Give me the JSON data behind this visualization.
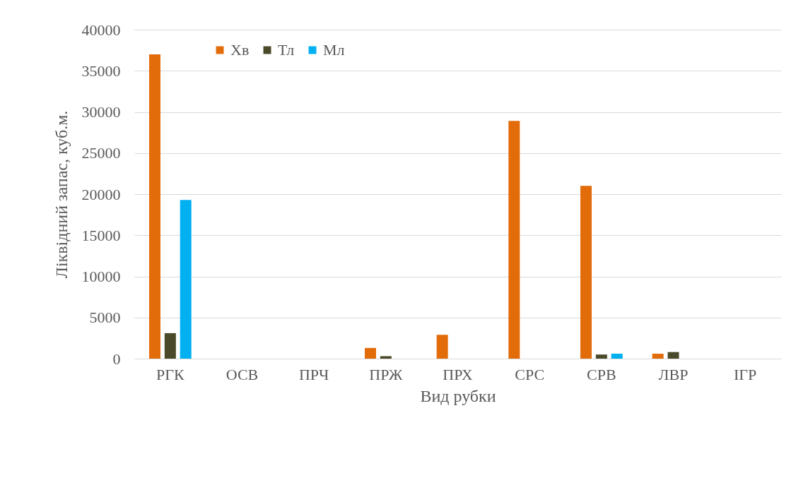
{
  "chart_data": {
    "type": "bar",
    "xlabel": "Вид рубки",
    "ylabel": "Ліквідний запас, куб.м.",
    "categories": [
      "РГК",
      "ОСВ",
      "ПРЧ",
      "ПРЖ",
      "ПРХ",
      "СРС",
      "СРВ",
      "ЛВР",
      "ІГР"
    ],
    "series": [
      {
        "name": "Хв",
        "color": "#e36c0a",
        "values": [
          37000,
          0,
          0,
          1300,
          2900,
          28900,
          21000,
          600,
          0
        ]
      },
      {
        "name": "Тл",
        "color": "#4a4a2a",
        "values": [
          3100,
          0,
          0,
          300,
          0,
          0,
          500,
          800,
          0
        ]
      },
      {
        "name": "Мл",
        "color": "#00b0f0",
        "values": [
          19300,
          0,
          0,
          0,
          0,
          0,
          600,
          0,
          0
        ]
      }
    ],
    "ylim": [
      0,
      40000
    ],
    "yticks": [
      0,
      5000,
      10000,
      15000,
      20000,
      25000,
      30000,
      35000,
      40000
    ],
    "grid": "y",
    "legend": "top left"
  }
}
